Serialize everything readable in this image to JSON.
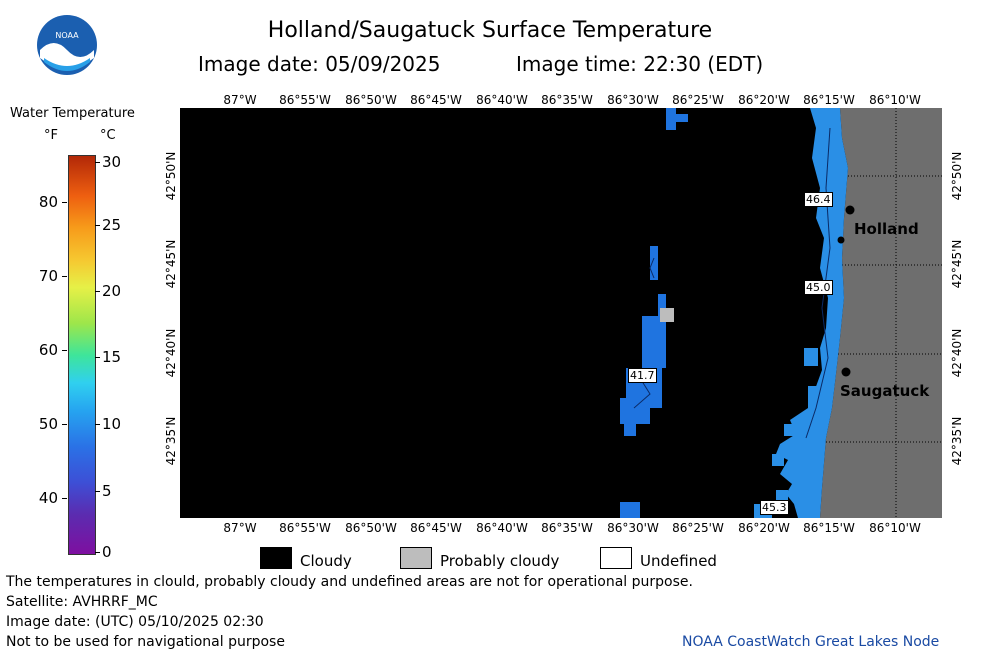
{
  "header": {
    "title": "Holland/Saugatuck Surface Temperature",
    "image_date": "Image date: 05/09/2025",
    "image_time": "Image time: 22:30 (EDT)"
  },
  "logo": {
    "text": "NOAA",
    "icon": "noaa-logo-icon"
  },
  "colorbar": {
    "title": "Water Temperature",
    "unit_f": "°F",
    "unit_c": "°C",
    "f_ticks": [
      "80",
      "70",
      "60",
      "50",
      "40"
    ],
    "c_ticks": [
      "30",
      "25",
      "20",
      "15",
      "10",
      "5",
      "0"
    ]
  },
  "map": {
    "lon_ticks": [
      "87°W",
      "86°55'W",
      "86°50'W",
      "86°45'W",
      "86°40'W",
      "86°35'W",
      "86°30'W",
      "86°25'W",
      "86°20'W",
      "86°15'W",
      "86°10'W"
    ],
    "lat_ticks": [
      "42°50'N",
      "42°45'N",
      "42°40'N",
      "42°35'N"
    ],
    "cities": [
      "Holland",
      "Saugatuck"
    ],
    "temp_labels": [
      "46.4",
      "45.0",
      "41.7",
      "45.3"
    ],
    "colors": {
      "cloud": "#000000",
      "land": "#6e6e6e",
      "water_cool": "#2a8fe6",
      "water_cold": "#1f74e0"
    }
  },
  "legend": {
    "cloudy": "Cloudy",
    "probably_cloudy": "Probably cloudy",
    "undefined": "Undefined"
  },
  "footer": {
    "note": "The temperatures in clould, probably cloudy and undefined areas are not for operational purpose.",
    "satellite": "Satellite: AVHRRF_MC",
    "utc_date": "Image date: (UTC) 05/10/2025  02:30",
    "warning": "Not to be used for navigational purpose",
    "credit": "NOAA CoastWatch Great Lakes Node"
  }
}
